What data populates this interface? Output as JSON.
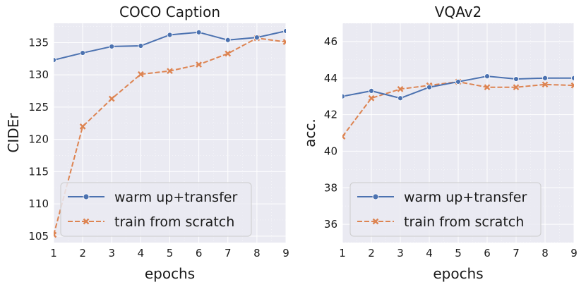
{
  "chart_data": [
    {
      "type": "line",
      "title": "COCO Caption",
      "xlabel": "epochs",
      "ylabel": "CIDEr",
      "x": [
        1,
        2,
        3,
        4,
        5,
        6,
        7,
        8,
        9
      ],
      "xlim": [
        1,
        9
      ],
      "ylim": [
        104,
        138
      ],
      "yticks": [
        105,
        110,
        115,
        120,
        125,
        130,
        135
      ],
      "grid": true,
      "legend_position": "bottom-left",
      "series": [
        {
          "name": "warm up+transfer",
          "color": "#4c72b0",
          "linestyle": "solid",
          "marker": "circle",
          "values": [
            132.3,
            133.4,
            134.4,
            134.5,
            136.2,
            136.6,
            135.4,
            135.8,
            136.8
          ]
        },
        {
          "name": "train from scratch",
          "color": "#dd8452",
          "linestyle": "dashed",
          "marker": "x",
          "values": [
            105.2,
            122.0,
            126.3,
            130.1,
            130.6,
            131.6,
            133.3,
            135.7,
            135.1
          ]
        }
      ]
    },
    {
      "type": "line",
      "title": "VQAv2",
      "xlabel": "epochs",
      "ylabel": "acc.",
      "x": [
        1,
        2,
        3,
        4,
        5,
        6,
        7,
        8,
        9
      ],
      "xlim": [
        1,
        9
      ],
      "ylim": [
        35,
        47
      ],
      "yticks": [
        36,
        38,
        40,
        42,
        44,
        46
      ],
      "grid": true,
      "legend_position": "bottom-left",
      "series": [
        {
          "name": "warm up+transfer",
          "color": "#4c72b0",
          "linestyle": "solid",
          "marker": "circle",
          "values": [
            43.0,
            43.3,
            42.9,
            43.5,
            43.8,
            44.1,
            43.95,
            44.0,
            44.0
          ]
        },
        {
          "name": "train from scratch",
          "color": "#dd8452",
          "linestyle": "dashed",
          "marker": "x",
          "values": [
            40.8,
            42.9,
            43.4,
            43.6,
            43.8,
            43.5,
            43.5,
            43.65,
            43.6
          ]
        }
      ]
    }
  ],
  "style": {
    "plot_background": "#eaeaf2",
    "grid_color": "#ffffff"
  }
}
